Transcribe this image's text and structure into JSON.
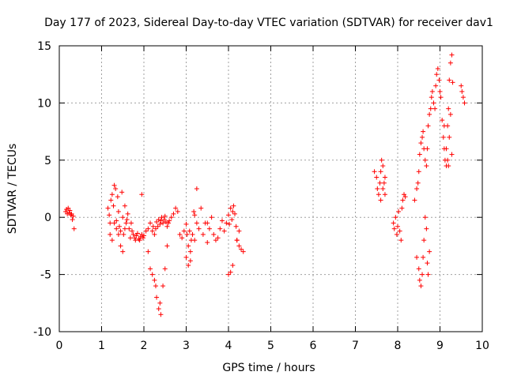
{
  "chart_data": {
    "type": "scatter",
    "title": "Day 177 of 2023, Sidereal Day-to-day VTEC variation (SDTVAR) for receiver dav1",
    "xlabel": "GPS time / hours",
    "ylabel": "SDTVAR / TECUs",
    "xlim": [
      0,
      10
    ],
    "ylim": [
      -10,
      15
    ],
    "x_ticks": [
      0,
      1,
      2,
      3,
      4,
      5,
      6,
      7,
      8,
      9,
      10
    ],
    "y_ticks": [
      -10,
      -5,
      0,
      5,
      10,
      15
    ],
    "x_tick_labels": [
      "0",
      "1",
      "2",
      "3",
      "4",
      "5",
      "6",
      "7",
      "8",
      "9",
      "10"
    ],
    "y_tick_labels": [
      "-10",
      "-5",
      "0",
      "5",
      "10",
      "15"
    ],
    "grid": true,
    "marker": "+",
    "series": [
      {
        "name": "dav1",
        "color": "#ff0000",
        "x": [
          0.15,
          0.17,
          0.19,
          0.21,
          0.23,
          0.25,
          0.27,
          0.29,
          0.31,
          0.33,
          0.35,
          1.15,
          1.18,
          1.2,
          1.22,
          1.25,
          1.28,
          1.3,
          1.33,
          1.35,
          1.38,
          1.4,
          1.42,
          1.45,
          1.48,
          1.5,
          1.52,
          1.55,
          1.58,
          1.6,
          1.62,
          1.65,
          1.68,
          1.7,
          1.72,
          1.75,
          1.78,
          1.8,
          1.82,
          1.85,
          1.88,
          1.9,
          1.92,
          1.95,
          1.98,
          2.0,
          2.05,
          2.1,
          2.15,
          2.2,
          2.22,
          2.25,
          2.28,
          2.3,
          2.33,
          2.35,
          2.38,
          2.4,
          2.42,
          2.45,
          2.48,
          2.5,
          2.52,
          2.55,
          2.58,
          2.6,
          2.65,
          2.7,
          2.75,
          2.8,
          2.85,
          2.9,
          2.95,
          3.0,
          3.02,
          3.05,
          3.08,
          3.1,
          3.12,
          3.15,
          3.18,
          3.2,
          3.25,
          3.3,
          3.35,
          3.4,
          3.45,
          3.5,
          3.55,
          3.6,
          3.65,
          3.7,
          3.75,
          3.8,
          3.85,
          3.9,
          3.95,
          4.0,
          4.02,
          4.05,
          4.08,
          4.1,
          4.12,
          4.15,
          4.18,
          4.2,
          4.25,
          4.3,
          4.35,
          1.2,
          1.25,
          1.3,
          1.35,
          1.4,
          1.45,
          1.5,
          1.55,
          1.95,
          2.1,
          2.15,
          2.2,
          2.25,
          2.28,
          2.3,
          2.35,
          2.38,
          2.4,
          2.45,
          2.5,
          2.55,
          3.0,
          3.05,
          3.1,
          3.2,
          3.25,
          3.5,
          4.0,
          4.05,
          4.1,
          4.2,
          4.25,
          7.45,
          7.5,
          7.52,
          7.55,
          7.58,
          7.6,
          7.62,
          7.65,
          7.68,
          7.7,
          7.6,
          7.65,
          7.7,
          7.9,
          7.92,
          7.95,
          7.98,
          8.0,
          8.02,
          8.05,
          8.08,
          8.1,
          8.12,
          8.15,
          8.18,
          8.4,
          8.45,
          8.48,
          8.5,
          8.52,
          8.55,
          8.58,
          8.6,
          8.62,
          8.65,
          8.68,
          8.7,
          8.72,
          8.75,
          8.78,
          8.8,
          8.82,
          8.85,
          8.88,
          8.9,
          8.92,
          8.95,
          8.98,
          9.0,
          9.02,
          9.05,
          9.08,
          9.1,
          9.12,
          9.15,
          9.18,
          9.2,
          9.22,
          9.25,
          9.28,
          9.3,
          8.45,
          8.5,
          8.52,
          8.55,
          8.58,
          8.6,
          8.62,
          8.65,
          8.68,
          8.7,
          8.72,
          8.75,
          9.1,
          9.15,
          9.18,
          9.2,
          9.22,
          9.25,
          9.28,
          9.5,
          9.52,
          9.55,
          9.58
        ],
        "y": [
          0.5,
          0.7,
          0.3,
          0.8,
          0.4,
          0.6,
          0.2,
          0.3,
          -0.2,
          0.1,
          -1.0,
          0.8,
          0.2,
          -0.5,
          1.5,
          2.0,
          1.0,
          2.8,
          2.5,
          -0.3,
          1.8,
          0.5,
          -0.8,
          -1.2,
          2.2,
          0.0,
          -1.5,
          1.0,
          -0.5,
          -0.2,
          0.3,
          -1.0,
          -1.8,
          -0.5,
          -1.2,
          -1.5,
          -1.8,
          -2.0,
          -1.6,
          -1.4,
          -1.9,
          -2.0,
          -1.7,
          -1.5,
          -1.8,
          -1.6,
          -1.2,
          -1.0,
          -0.5,
          -1.2,
          -0.8,
          -1.5,
          -1.0,
          -0.4,
          -0.8,
          -0.2,
          -0.6,
          -0.3,
          0.0,
          -0.5,
          -0.2,
          0.1,
          -0.4,
          -0.8,
          -0.5,
          -0.3,
          0.0,
          0.3,
          0.8,
          0.5,
          -1.5,
          -1.8,
          -1.2,
          -0.6,
          -1.5,
          -2.5,
          -1.2,
          -3.0,
          -2.0,
          -1.5,
          0.5,
          0.2,
          -0.5,
          -1.0,
          0.8,
          -1.5,
          -0.5,
          -2.2,
          -1.0,
          0.0,
          -1.5,
          -2.0,
          -1.8,
          -1.0,
          -0.3,
          -1.2,
          -0.5,
          0.2,
          -0.6,
          0.8,
          -0.2,
          0.5,
          1.0,
          0.3,
          -0.8,
          -2.0,
          -2.5,
          -2.8,
          -3.0,
          -1.5,
          -2.0,
          -0.5,
          -1.0,
          -1.5,
          -2.5,
          -3.0,
          -1.0,
          2.0,
          -3.0,
          -4.5,
          -5.0,
          -5.5,
          -6.0,
          -7.0,
          -8.0,
          -7.5,
          -8.5,
          -6.0,
          -4.5,
          -2.5,
          -3.5,
          -4.2,
          -3.8,
          -2.0,
          2.5,
          -0.5,
          -5.0,
          -4.8,
          -4.2,
          -2.0,
          -1.2,
          4.0,
          3.5,
          2.5,
          2.0,
          3.0,
          4.0,
          5.0,
          4.5,
          3.0,
          2.0,
          1.5,
          2.5,
          3.5,
          -0.5,
          -1.0,
          0.0,
          -1.5,
          -0.8,
          0.5,
          -1.2,
          -2.0,
          0.8,
          1.5,
          2.0,
          1.8,
          1.5,
          2.5,
          3.0,
          4.0,
          5.5,
          6.5,
          7.0,
          7.5,
          6.0,
          5.0,
          4.5,
          6.0,
          8.0,
          9.0,
          9.5,
          10.5,
          11.0,
          10.0,
          9.5,
          11.5,
          12.5,
          13.0,
          12.0,
          11.0,
          10.5,
          8.5,
          7.0,
          6.0,
          5.0,
          4.5,
          8.0,
          9.5,
          12.0,
          13.5,
          14.2,
          11.8,
          -3.5,
          -4.5,
          -5.5,
          -6.0,
          -5.0,
          -3.5,
          -2.0,
          0.0,
          -1.0,
          -4.0,
          -5.0,
          -3.0,
          8.0,
          6.0,
          5.0,
          4.5,
          7.0,
          9.0,
          5.5,
          11.5,
          11.0,
          10.5,
          10.0
        ]
      }
    ]
  }
}
